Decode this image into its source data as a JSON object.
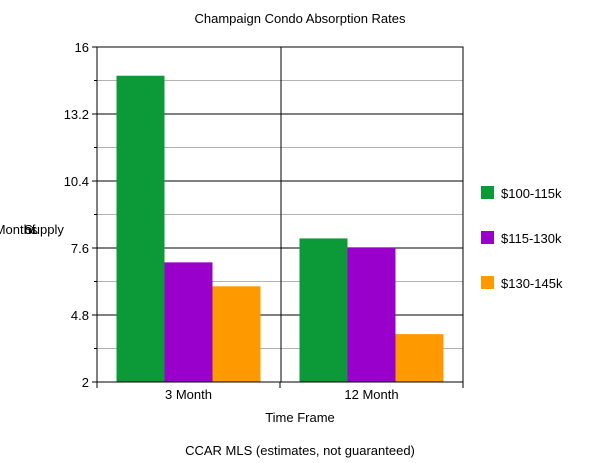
{
  "chart_data": {
    "type": "bar",
    "title": "Champaign Condo Absorption Rates",
    "xlabel": "Time Frame",
    "ylabel": [
      "Months",
      "of",
      "Supply"
    ],
    "footnote": "CCAR MLS (estimates, not guaranteed)",
    "categories": [
      "3 Month",
      "12 Month"
    ],
    "series": [
      {
        "name": "$100-115k",
        "color": "#0b9a37",
        "values": [
          14.8,
          8.0
        ]
      },
      {
        "name": "$115-130k",
        "color": "#9a00cc",
        "values": [
          7.0,
          7.6
        ]
      },
      {
        "name": "$130-145k",
        "color": "#ff9900",
        "values": [
          6.0,
          4.0
        ]
      }
    ],
    "ylim": [
      2,
      16
    ],
    "yticks": [
      "2",
      "4.8",
      "7.6",
      "10.4",
      "13.2",
      "16"
    ],
    "grid": true,
    "legend": "right"
  }
}
